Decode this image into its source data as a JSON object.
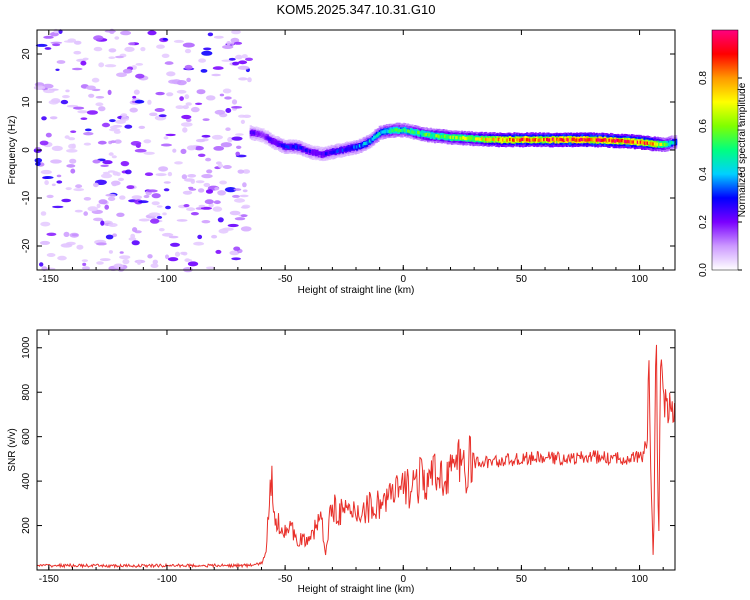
{
  "title": "KOM5.2025.347.10.31.G10",
  "chart_data": [
    {
      "type": "heatmap",
      "title": "KOM5.2025.347.10.31.G10",
      "xlabel": "Height of straight line (km)",
      "ylabel": "Frequency (Hz)",
      "xlim": [
        -155,
        115
      ],
      "ylim": [
        -25,
        25
      ],
      "x_ticks": [
        -150,
        -100,
        -50,
        0,
        50,
        100
      ],
      "y_ticks": [
        -20,
        -10,
        0,
        10,
        20
      ],
      "colorbar": {
        "label": "Normalized spectral amplitude",
        "range": [
          0,
          1
        ],
        "ticks": [
          0.0,
          0.2,
          0.4,
          0.6,
          0.8
        ],
        "colors": [
          "#ffffff",
          "#cc99ff",
          "#7a00ff",
          "#0000ff",
          "#00d0ff",
          "#00ff80",
          "#80ff00",
          "#ffff00",
          "#ff9900",
          "#ff0000",
          "#ff0080"
        ]
      },
      "ridge": {
        "heights_km": [
          -65,
          -60,
          -55,
          -50,
          -45,
          -40,
          -35,
          -30,
          -25,
          -20,
          -15,
          -10,
          -5,
          0,
          10,
          20,
          30,
          40,
          50,
          60,
          70,
          80,
          90,
          100,
          105,
          110,
          115
        ],
        "frequency_hz": [
          3.5,
          3.0,
          1.5,
          0.5,
          0.5,
          -0.5,
          -1.0,
          -0.5,
          0.0,
          0.5,
          1.5,
          3.5,
          4.0,
          4.0,
          3.0,
          2.5,
          2.2,
          2.0,
          2.0,
          2.0,
          2.0,
          2.0,
          1.8,
          1.5,
          1.2,
          1.0,
          1.5
        ],
        "amplitude": [
          0.25,
          0.2,
          0.25,
          0.3,
          0.3,
          0.25,
          0.25,
          0.3,
          0.3,
          0.35,
          0.4,
          0.45,
          0.5,
          0.5,
          0.55,
          0.6,
          0.65,
          0.8,
          0.85,
          0.85,
          0.9,
          0.9,
          0.9,
          0.85,
          0.8,
          0.6,
          0.35
        ]
      },
      "noise_region_km": [
        -155,
        -65
      ]
    },
    {
      "type": "line",
      "xlabel": "Height of straight line (km)",
      "ylabel": "SNR (v/v)",
      "xlim": [
        -155,
        115
      ],
      "ylim": [
        0,
        1080
      ],
      "x_ticks": [
        -150,
        -100,
        -50,
        0,
        50,
        100
      ],
      "y_ticks": [
        200,
        400,
        600,
        800,
        1000
      ],
      "color": "#e8302a",
      "series": [
        {
          "name": "SNR",
          "x": [
            -155,
            -140,
            -120,
            -100,
            -80,
            -65,
            -60,
            -58,
            -56,
            -54,
            -52,
            -50,
            -45,
            -40,
            -35,
            -33,
            -30,
            -25,
            -20,
            -15,
            -10,
            -5,
            0,
            5,
            10,
            15,
            20,
            25,
            30,
            40,
            50,
            60,
            70,
            80,
            90,
            100,
            103,
            104,
            105,
            106,
            107,
            108,
            109,
            110,
            112,
            115
          ],
          "y": [
            20,
            20,
            18,
            20,
            20,
            20,
            30,
            80,
            410,
            250,
            180,
            200,
            150,
            120,
            250,
            80,
            300,
            250,
            260,
            280,
            300,
            330,
            360,
            400,
            400,
            420,
            460,
            470,
            480,
            490,
            500,
            505,
            500,
            510,
            500,
            510,
            500,
            1000,
            300,
            50,
            1060,
            100,
            900,
            750,
            720,
            720
          ]
        }
      ]
    }
  ]
}
